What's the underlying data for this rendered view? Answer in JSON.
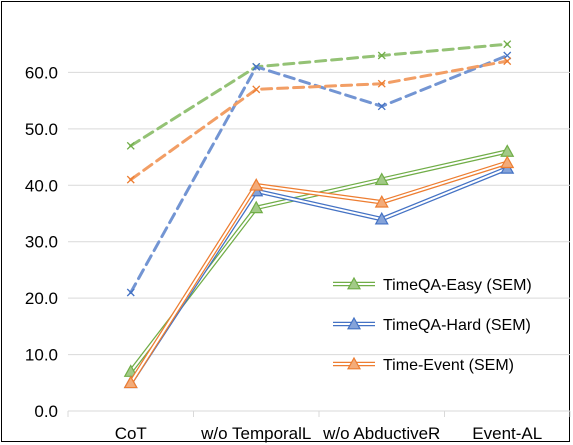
{
  "chart_data": {
    "type": "line",
    "categories": [
      "CoT",
      "w/o TemporalL",
      "w/o AbductiveR",
      "Event-AL"
    ],
    "ylim": [
      0,
      70
    ],
    "yticks": [
      0,
      10,
      20,
      30,
      40,
      50,
      60
    ],
    "ytick_labels": [
      "0.0",
      "10.0",
      "20.0",
      "30.0",
      "40.0",
      "50.0",
      "60.0"
    ],
    "grid": "horizontal",
    "legend_position": "lower-right",
    "series": [
      {
        "name": "TimeQA-Easy (SEM)",
        "values": [
          7,
          36,
          41,
          46
        ],
        "color": "#70ad47",
        "style": "double-line",
        "marker": "triangle",
        "in_legend": true
      },
      {
        "name": "TimeQA-Hard (SEM)",
        "values": [
          5,
          39,
          34,
          43
        ],
        "color": "#4472c4",
        "style": "double-line",
        "marker": "triangle",
        "in_legend": true
      },
      {
        "name": "Time-Event (SEM)",
        "values": [
          5,
          40,
          37,
          44
        ],
        "color": "#ed7d31",
        "style": "double-line",
        "marker": "triangle",
        "in_legend": true
      },
      {
        "name": "",
        "values": [
          47,
          61,
          63,
          65
        ],
        "color": "#70ad47",
        "style": "dashed",
        "marker": "x",
        "in_legend": false
      },
      {
        "name": "",
        "values": [
          21,
          61,
          54,
          63
        ],
        "color": "#4472c4",
        "style": "dashed",
        "marker": "x",
        "in_legend": false
      },
      {
        "name": "",
        "values": [
          41,
          57,
          58,
          62
        ],
        "color": "#ed7d31",
        "style": "dashed",
        "marker": "x",
        "in_legend": false
      }
    ]
  }
}
